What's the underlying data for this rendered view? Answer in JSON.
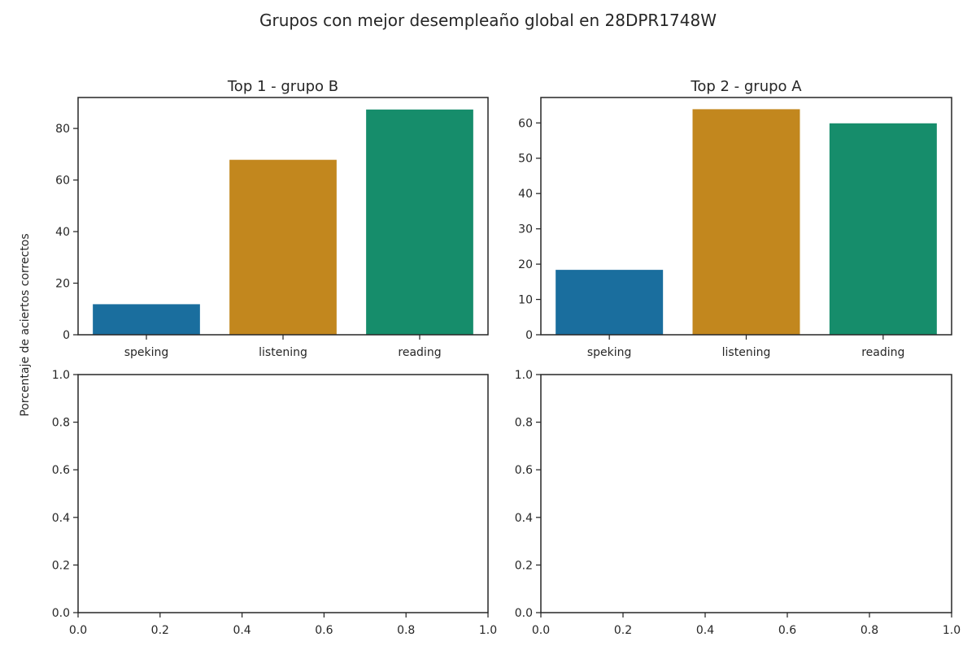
{
  "suptitle": "Grupos con mejor desempleaño global en 28DPR1748W",
  "ylabel": "Porcentaje de aciertos correctos",
  "chart_data": [
    {
      "type": "bar",
      "title": "Top  1 - grupo B",
      "categories": [
        "speking",
        "listening",
        "reading"
      ],
      "values": [
        12,
        68,
        87.5
      ],
      "colors": [
        "#1a6e9e",
        "#c2871e",
        "#168d6b"
      ],
      "ylim": [
        0,
        92
      ],
      "yticks": [
        "0",
        "20",
        "40",
        "60",
        "80"
      ],
      "ytick_values": [
        0,
        20,
        40,
        60,
        80
      ]
    },
    {
      "type": "bar",
      "title": "Top  2 - grupo A",
      "categories": [
        "speking",
        "listening",
        "reading"
      ],
      "values": [
        18.5,
        64,
        60
      ],
      "colors": [
        "#1a6e9e",
        "#c2871e",
        "#168d6b"
      ],
      "ylim": [
        0,
        67.2
      ],
      "yticks": [
        "0",
        "10",
        "20",
        "30",
        "40",
        "50",
        "60"
      ],
      "ytick_values": [
        0,
        10,
        20,
        30,
        40,
        50,
        60
      ]
    },
    {
      "type": "empty",
      "title": "",
      "xlim": [
        0,
        1
      ],
      "ylim": [
        0,
        1
      ],
      "xticks": [
        "0.0",
        "0.2",
        "0.4",
        "0.6",
        "0.8",
        "1.0"
      ],
      "yticks": [
        "0.0",
        "0.2",
        "0.4",
        "0.6",
        "0.8",
        "1.0"
      ]
    },
    {
      "type": "empty",
      "title": "",
      "xlim": [
        0,
        1
      ],
      "ylim": [
        0,
        1
      ],
      "xticks": [
        "0.0",
        "0.2",
        "0.4",
        "0.6",
        "0.8",
        "1.0"
      ],
      "yticks": [
        "0.0",
        "0.2",
        "0.4",
        "0.6",
        "0.8",
        "1.0"
      ]
    }
  ]
}
